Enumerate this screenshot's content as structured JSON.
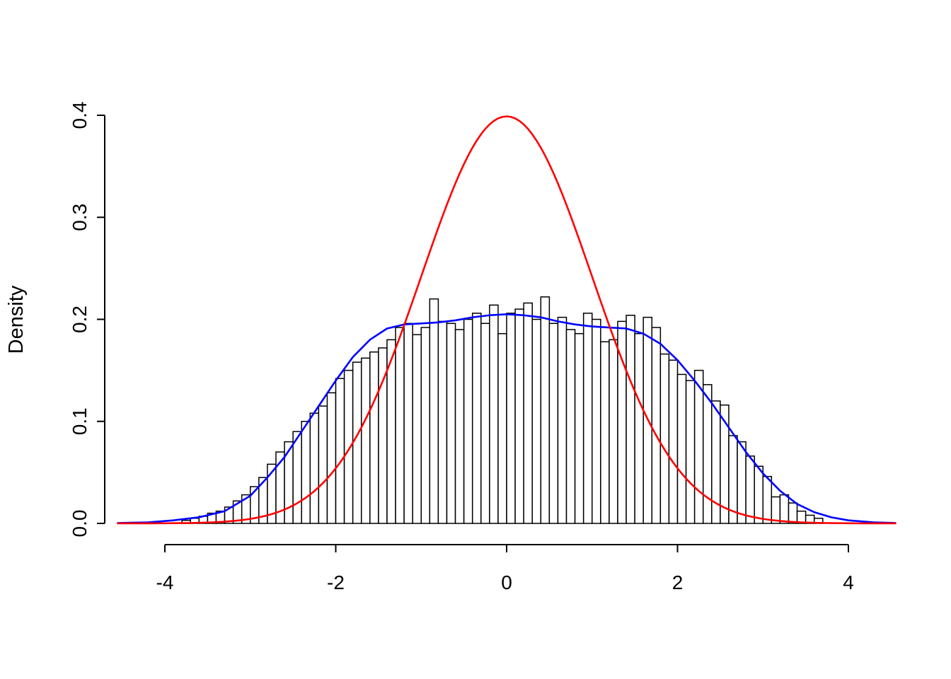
{
  "figure": {
    "background": "#ffffff",
    "plot_type_description": "R-style histogram with kernel density estimate and standard normal overlay"
  },
  "chart_data": {
    "type": "bar",
    "subtype": "histogram-with-density-curves",
    "title": "",
    "xlabel": "",
    "ylabel": "Density",
    "xlim": [
      -4.55,
      4.55
    ],
    "ylim": [
      0,
      0.4
    ],
    "grid": "off",
    "legend": "none",
    "x_ticks": [
      -4,
      -2,
      0,
      2,
      4
    ],
    "x_tick_labels": [
      "-4",
      "-2",
      "0",
      "2",
      "4"
    ],
    "y_ticks": [
      0.0,
      0.1,
      0.2,
      0.3,
      0.4
    ],
    "y_tick_labels": [
      "0.0",
      "0.1",
      "0.2",
      "0.3",
      "0.4"
    ],
    "histogram": {
      "bin_start": -3.8,
      "bin_width": 0.1,
      "bar_fill": "#ffffff",
      "bar_stroke": "#000000",
      "densities": [
        0.003,
        0.005,
        0.007,
        0.01,
        0.012,
        0.016,
        0.022,
        0.028,
        0.036,
        0.045,
        0.058,
        0.07,
        0.08,
        0.09,
        0.1,
        0.108,
        0.115,
        0.128,
        0.142,
        0.15,
        0.158,
        0.162,
        0.168,
        0.172,
        0.18,
        0.192,
        0.196,
        0.185,
        0.192,
        0.22,
        0.198,
        0.196,
        0.19,
        0.2,
        0.206,
        0.196,
        0.214,
        0.186,
        0.206,
        0.21,
        0.216,
        0.2,
        0.222,
        0.196,
        0.202,
        0.19,
        0.186,
        0.206,
        0.2,
        0.178,
        0.18,
        0.198,
        0.204,
        0.186,
        0.202,
        0.192,
        0.166,
        0.16,
        0.146,
        0.14,
        0.15,
        0.136,
        0.12,
        0.116,
        0.086,
        0.08,
        0.066,
        0.056,
        0.046,
        0.026,
        0.028,
        0.02,
        0.012,
        0.008,
        0.005
      ]
    },
    "kde_curve": {
      "name": "kernel-density-estimate",
      "color": "#0000ff",
      "points": [
        [
          -4.55,
          0.0004
        ],
        [
          -4.2,
          0.001
        ],
        [
          -3.9,
          0.003
        ],
        [
          -3.6,
          0.006
        ],
        [
          -3.3,
          0.012
        ],
        [
          -3.0,
          0.027
        ],
        [
          -2.8,
          0.045
        ],
        [
          -2.6,
          0.065
        ],
        [
          -2.4,
          0.09
        ],
        [
          -2.2,
          0.115
        ],
        [
          -2.0,
          0.14
        ],
        [
          -1.8,
          0.163
        ],
        [
          -1.6,
          0.18
        ],
        [
          -1.4,
          0.191
        ],
        [
          -1.2,
          0.195
        ],
        [
          -1.0,
          0.196
        ],
        [
          -0.8,
          0.197
        ],
        [
          -0.6,
          0.199
        ],
        [
          -0.4,
          0.202
        ],
        [
          -0.2,
          0.204
        ],
        [
          0.0,
          0.205
        ],
        [
          0.2,
          0.204
        ],
        [
          0.4,
          0.202
        ],
        [
          0.6,
          0.198
        ],
        [
          0.8,
          0.195
        ],
        [
          1.0,
          0.193
        ],
        [
          1.2,
          0.192
        ],
        [
          1.4,
          0.191
        ],
        [
          1.6,
          0.186
        ],
        [
          1.8,
          0.176
        ],
        [
          2.0,
          0.16
        ],
        [
          2.2,
          0.14
        ],
        [
          2.4,
          0.118
        ],
        [
          2.6,
          0.094
        ],
        [
          2.8,
          0.07
        ],
        [
          3.0,
          0.049
        ],
        [
          3.2,
          0.032
        ],
        [
          3.4,
          0.019
        ],
        [
          3.6,
          0.011
        ],
        [
          3.8,
          0.006
        ],
        [
          4.0,
          0.003
        ],
        [
          4.3,
          0.001
        ],
        [
          4.55,
          0.0004
        ]
      ]
    },
    "normal_curve": {
      "name": "standard-normal-pdf",
      "color": "#ff0000",
      "mean": 0,
      "sd": 1,
      "peak_density": 0.3989
    }
  }
}
